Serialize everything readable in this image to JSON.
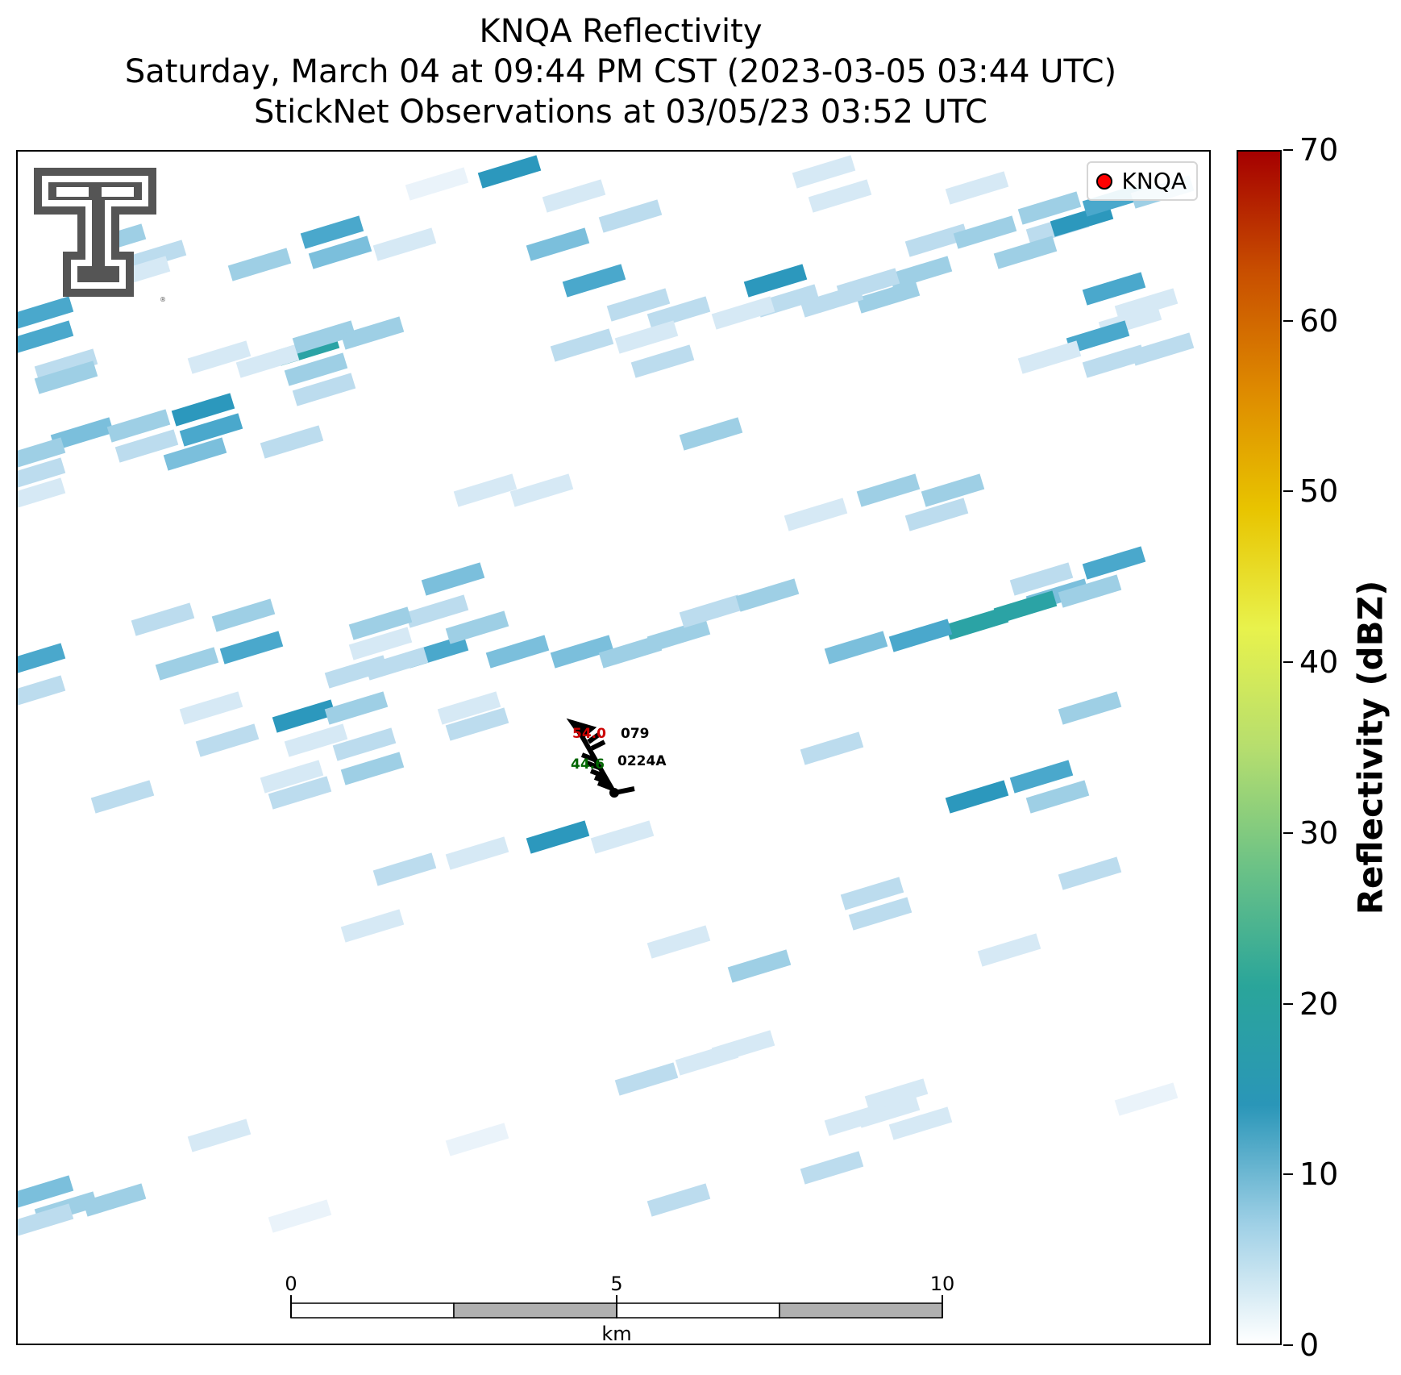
{
  "title": {
    "line1": "KNQA Reflectivity",
    "line2": "Saturday, March 04 at 09:44 PM CST (2023-03-05 03:44 UTC)",
    "line3": "StickNet Observations at 03/05/23 03:52 UTC"
  },
  "legend": {
    "label": "KNQA",
    "marker_color": "#ff0000"
  },
  "colorbar": {
    "label": "Reflectivity (dBZ)",
    "ticks": [
      "0",
      "10",
      "20",
      "30",
      "40",
      "50",
      "60",
      "70"
    ],
    "range": [
      0,
      70
    ],
    "colors": [
      "#ffffff",
      "#9fd0e6",
      "#2a96b8",
      "#2aa59a",
      "#6cc286",
      "#b6de6e",
      "#e8f24c",
      "#e8c400",
      "#de8a00",
      "#c84e00",
      "#a50000"
    ]
  },
  "station": {
    "temperature": "54.0",
    "pressure": "079",
    "dewpoint": "44.6",
    "id": "0224A",
    "temperature_color": "#cc0000",
    "dewpoint_color": "#006600"
  },
  "scale_bar": {
    "labels": [
      "0",
      "5",
      "10"
    ],
    "unit": "km"
  },
  "logo": {
    "text": "TT",
    "color": "#555555"
  }
}
